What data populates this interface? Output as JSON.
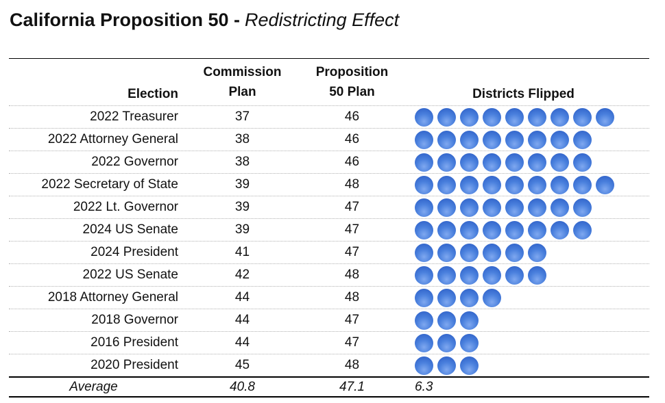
{
  "title": {
    "bold": "California Proposition 50 -",
    "italic": "Redistricting Effect"
  },
  "headers": {
    "election": "Election",
    "commission_l1": "Commission",
    "commission_l2": "Plan",
    "prop50_l1": "Proposition",
    "prop50_l2": "50 Plan",
    "flipped": "Districts Flipped"
  },
  "rows": [
    {
      "election": "2022 Treasurer",
      "commission": "37",
      "prop50": "46",
      "flipped": 9
    },
    {
      "election": "2022 Attorney General",
      "commission": "38",
      "prop50": "46",
      "flipped": 8
    },
    {
      "election": "2022 Governor",
      "commission": "38",
      "prop50": "46",
      "flipped": 8
    },
    {
      "election": "2022 Secretary of State",
      "commission": "39",
      "prop50": "48",
      "flipped": 9
    },
    {
      "election": "2022 Lt. Governor",
      "commission": "39",
      "prop50": "47",
      "flipped": 8
    },
    {
      "election": "2024 US Senate",
      "commission": "39",
      "prop50": "47",
      "flipped": 8
    },
    {
      "election": "2024 President",
      "commission": "41",
      "prop50": "47",
      "flipped": 6
    },
    {
      "election": "2022 US Senate",
      "commission": "42",
      "prop50": "48",
      "flipped": 6
    },
    {
      "election": "2018 Attorney General",
      "commission": "44",
      "prop50": "48",
      "flipped": 4
    },
    {
      "election": "2018 Governor",
      "commission": "44",
      "prop50": "47",
      "flipped": 3
    },
    {
      "election": "2016 President",
      "commission": "44",
      "prop50": "47",
      "flipped": 3
    },
    {
      "election": "2020 President",
      "commission": "45",
      "prop50": "48",
      "flipped": 3
    }
  ],
  "average": {
    "label": "Average",
    "commission": "40.8",
    "prop50": "47.1",
    "flipped": "6.3"
  },
  "colors": {
    "dot_highlight": "#7fa8f0",
    "dot_mid": "#4a80dd",
    "dot_edge": "#2c5ec6",
    "text": "#111111",
    "dotted_grid": "#b0b0b0",
    "rule": "#000000"
  },
  "chart_data": {
    "type": "table",
    "title": "California Proposition 50 - Redistricting Effect",
    "columns": [
      "Election",
      "Commission Plan",
      "Proposition 50 Plan",
      "Districts Flipped"
    ],
    "rows": [
      [
        "2022 Treasurer",
        37,
        46,
        9
      ],
      [
        "2022 Attorney General",
        38,
        46,
        8
      ],
      [
        "2022 Governor",
        38,
        46,
        8
      ],
      [
        "2022 Secretary of State",
        39,
        48,
        9
      ],
      [
        "2022 Lt. Governor",
        39,
        47,
        8
      ],
      [
        "2024 US Senate",
        39,
        47,
        8
      ],
      [
        "2024 President",
        41,
        47,
        6
      ],
      [
        "2022 US Senate",
        42,
        48,
        6
      ],
      [
        "2018 Attorney General",
        44,
        48,
        4
      ],
      [
        "2018 Governor",
        44,
        47,
        3
      ],
      [
        "2016 President",
        44,
        47,
        3
      ],
      [
        "2020 President",
        45,
        48,
        3
      ]
    ],
    "average_row": [
      "Average",
      40.8,
      47.1,
      6.3
    ],
    "flipped_rendering": "one filled blue dot per district flipped",
    "legend_position": "none",
    "grid": "dotted horizontal separators between rows"
  }
}
